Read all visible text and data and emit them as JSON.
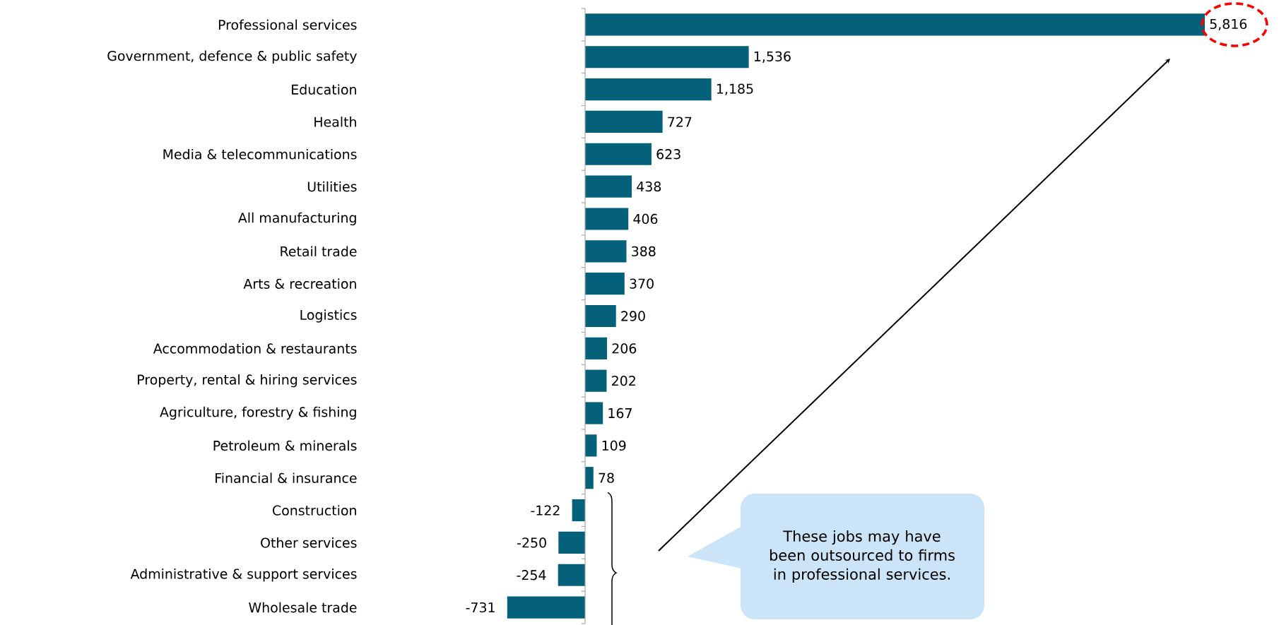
{
  "chart_data": {
    "type": "bar",
    "orientation": "horizontal",
    "color": "#05607a",
    "categories": [
      "Professional services",
      "Government, defence & public safety",
      "Education",
      "Health",
      "Media & telecommunications",
      "Utilities",
      "All manufacturing",
      "Retail trade",
      "Arts & recreation",
      "Logistics",
      "Accommodation & restaurants",
      "Property, rental & hiring services",
      "Agriculture, forestry & fishing",
      "Petroleum & minerals",
      "Financial & insurance",
      "Construction",
      "Other services",
      "Administrative & support services",
      "Wholesale trade"
    ],
    "values": [
      5816,
      1536,
      1185,
      727,
      623,
      438,
      406,
      388,
      370,
      290,
      206,
      202,
      167,
      109,
      78,
      -122,
      -250,
      -254,
      -731
    ],
    "value_labels": [
      "5,816",
      "1,536",
      "1,185",
      "727",
      "623",
      "438",
      "406",
      "388",
      "370",
      "290",
      "206",
      "202",
      "167",
      "109",
      "78",
      "-122",
      "-250",
      "-254",
      "-731"
    ],
    "annotations": [
      "These jobs may have been outsourced to firms in professional services."
    ]
  }
}
